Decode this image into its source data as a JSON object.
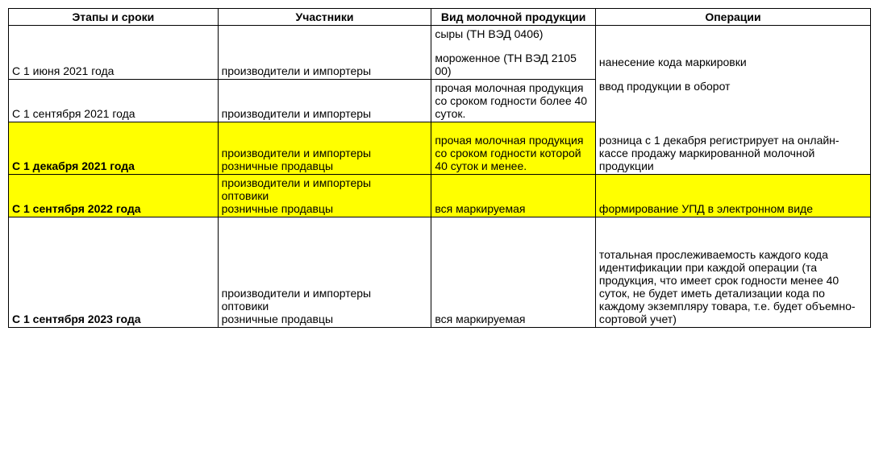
{
  "headers": {
    "stages": "Этапы и сроки",
    "participants": "Участники",
    "products": "Вид молочной продукции",
    "operations": "Операции"
  },
  "rows": {
    "r1": {
      "stages": "С 1 июня 2021 года",
      "participants": "производители и импортеры",
      "products_line1": "сыры (ТН ВЭД 0406)",
      "products_line2": "мороженное (ТН ВЭД 2105 00)",
      "operations_line1": "нанесение кода маркировки",
      "operations_line2": "ввод продукции в оборот"
    },
    "r2": {
      "stages": "С 1 сентября 2021 года",
      "participants": "производители и импортеры",
      "products": "прочая молочная продукция со сроком годности более 40 суток."
    },
    "r3": {
      "stages": "С 1 декабря 2021 года",
      "participants_line1": "производители и импортеры",
      "participants_line2": "розничные продавцы",
      "products": "прочая молочная продукция со сроком годности которой 40 суток и менее.",
      "operations": "розница с 1 декабря регистрирует на онлайн-кассе продажу маркированной молочной продукции"
    },
    "r4": {
      "stages": "С 1 сентября 2022 года",
      "participants_line1": "производители и импортеры",
      "participants_line2": "оптовики",
      "participants_line3": "розничные продавцы",
      "products": "вся маркируемая",
      "operations": "формирование УПД в электронном виде"
    },
    "r5": {
      "stages": "С 1 сентября 2023 года",
      "participants_line1": "производители и импортеры",
      "participants_line2": "оптовики",
      "participants_line3": "розничные продавцы",
      "products": "вся маркируемая",
      "operations": "тотальная прослеживаемость каждого кода идентификации при каждой операции (та продукция, что имеет срок годности менее 40 суток, не будет иметь детализации кода по каждому экземпляру товара, т.е. будет объемно-сортовой учет)"
    }
  }
}
